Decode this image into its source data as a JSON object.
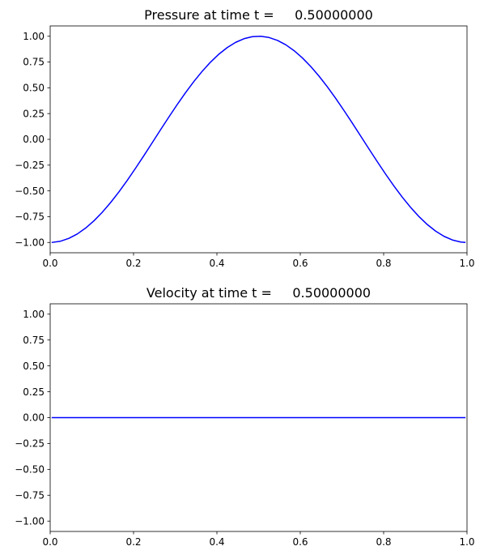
{
  "figure": {
    "background": "#ffffff",
    "line_color": "#0000ff"
  },
  "chart_data": [
    {
      "type": "line",
      "title": "Pressure at time t =     0.50000000",
      "xlabel": "",
      "ylabel": "",
      "xlim": [
        0.0,
        1.0
      ],
      "ylim": [
        -1.1,
        1.1
      ],
      "xticks": [
        "0.0",
        "0.2",
        "0.4",
        "0.6",
        "0.8",
        "1.0"
      ],
      "yticks": [
        "-1.00",
        "-0.75",
        "-0.50",
        "-0.25",
        "0.00",
        "0.25",
        "0.50",
        "0.75",
        "1.00"
      ],
      "grid": false,
      "legend": "none",
      "series": [
        {
          "color": "#0000ff",
          "x": [
            0.005,
            0.025,
            0.045,
            0.065,
            0.085,
            0.105,
            0.125,
            0.145,
            0.165,
            0.185,
            0.205,
            0.225,
            0.245,
            0.265,
            0.285,
            0.305,
            0.325,
            0.345,
            0.365,
            0.385,
            0.405,
            0.425,
            0.445,
            0.465,
            0.485,
            0.505,
            0.525,
            0.545,
            0.565,
            0.585,
            0.605,
            0.625,
            0.645,
            0.665,
            0.685,
            0.705,
            0.725,
            0.745,
            0.765,
            0.785,
            0.805,
            0.825,
            0.845,
            0.865,
            0.885,
            0.905,
            0.925,
            0.945,
            0.965,
            0.985,
            0.995
          ],
          "y": [
            -0.9995,
            -0.9877,
            -0.9603,
            -0.9178,
            -0.8607,
            -0.7902,
            -0.7071,
            -0.6129,
            -0.509,
            -0.3971,
            -0.279,
            -0.1564,
            -0.0314,
            0.0941,
            0.2181,
            0.3387,
            0.454,
            0.5621,
            0.6613,
            0.7501,
            0.8271,
            0.891,
            0.9409,
            0.9759,
            0.9956,
            0.9995,
            0.9877,
            0.9603,
            0.9178,
            0.8607,
            0.7902,
            0.7071,
            0.6129,
            0.509,
            0.3971,
            0.279,
            0.1564,
            0.0314,
            -0.0941,
            -0.2181,
            -0.3387,
            -0.454,
            -0.5621,
            -0.6613,
            -0.7501,
            -0.8271,
            -0.891,
            -0.9409,
            -0.9759,
            -0.9956,
            -0.9995
          ]
        }
      ]
    },
    {
      "type": "line",
      "title": "Velocity at time t =     0.50000000",
      "xlabel": "",
      "ylabel": "",
      "xlim": [
        0.0,
        1.0
      ],
      "ylim": [
        -1.1,
        1.1
      ],
      "xticks": [
        "0.0",
        "0.2",
        "0.4",
        "0.6",
        "0.8",
        "1.0"
      ],
      "yticks": [
        "-1.00",
        "-0.75",
        "-0.50",
        "-0.25",
        "0.00",
        "0.25",
        "0.50",
        "0.75",
        "1.00"
      ],
      "grid": false,
      "legend": "none",
      "series": [
        {
          "color": "#0000ff",
          "x": [
            0.005,
            0.995
          ],
          "y": [
            0.0,
            0.0
          ]
        }
      ]
    }
  ]
}
